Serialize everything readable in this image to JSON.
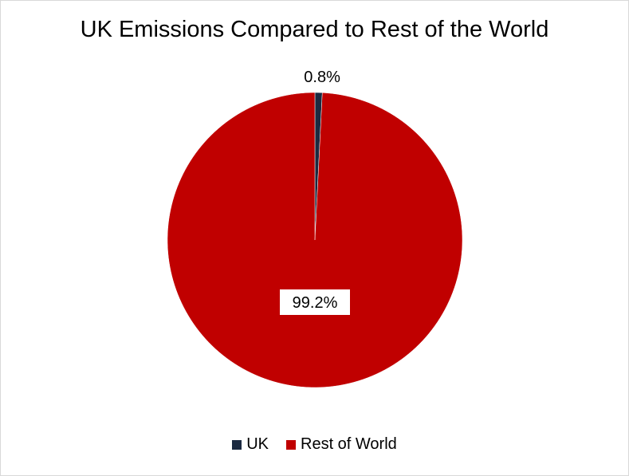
{
  "chart_data": {
    "type": "pie",
    "title": "UK Emissions Compared to Rest of the World",
    "categories": [
      "UK",
      "Rest of World"
    ],
    "values": [
      0.8,
      99.2
    ],
    "data_labels": [
      "0.8%",
      "99.2%"
    ],
    "colors": [
      "#1b2a41",
      "#c00000"
    ],
    "legend_position": "bottom"
  }
}
